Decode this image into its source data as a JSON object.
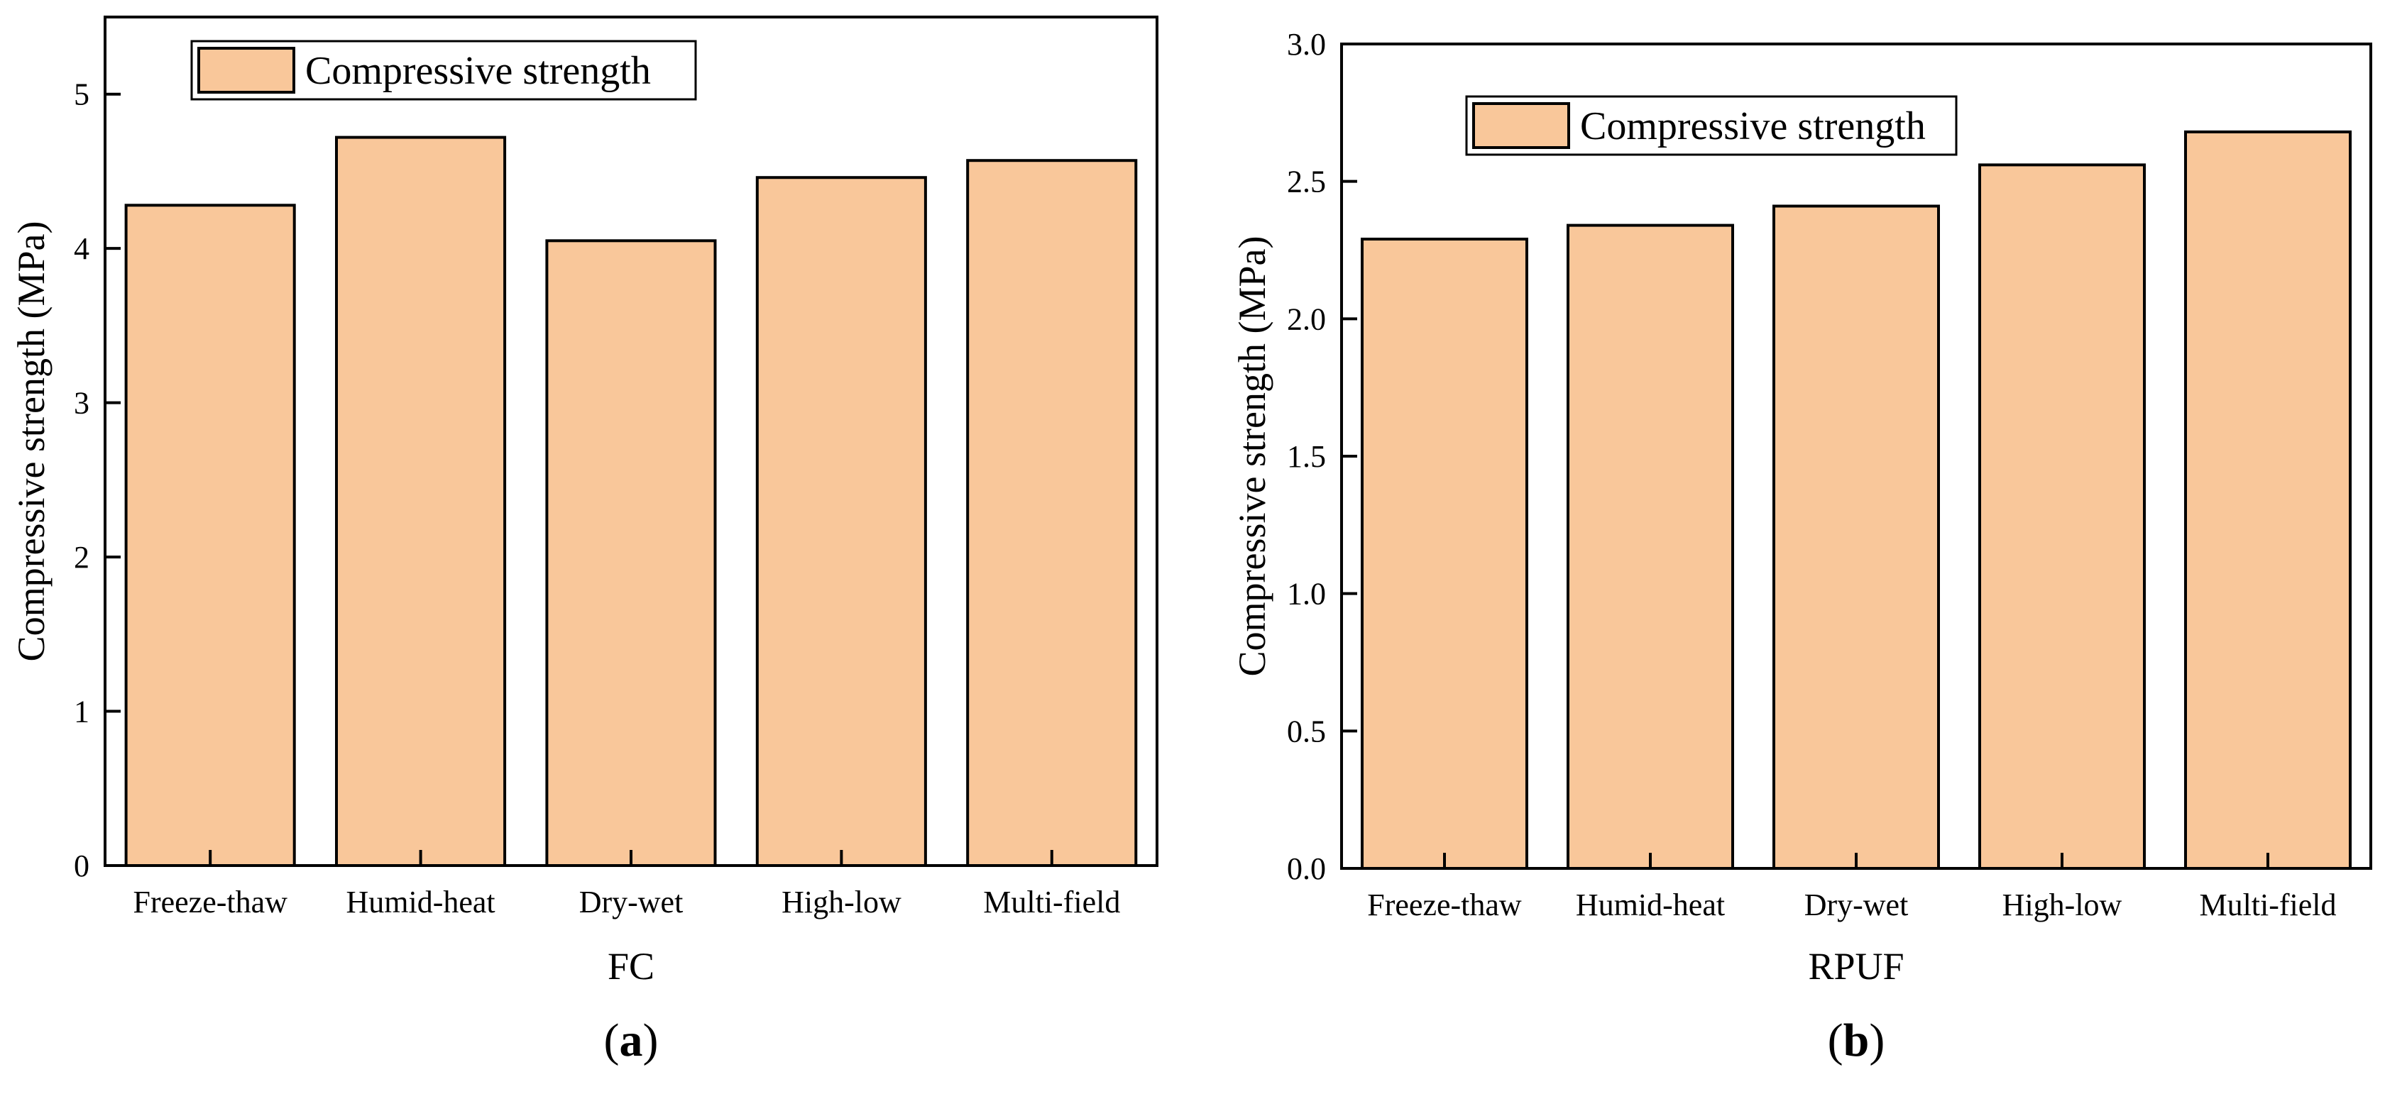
{
  "colors": {
    "bar_fill": "#F9C79A",
    "bar_stroke": "#000000",
    "axis": "#000000",
    "background": "#ffffff"
  },
  "chart_data": [
    {
      "type": "bar",
      "panel_label": {
        "open": "(",
        "letter": "a",
        "close": ")"
      },
      "title": "",
      "xlabel": "FC",
      "ylabel": "Compressive strength (MPa)",
      "categories": [
        "Freeze-thaw",
        "Humid-heat",
        "Dry-wet",
        "High-low",
        "Multi-field"
      ],
      "series": [
        {
          "name": "Compressive strength",
          "values": [
            4.28,
            4.72,
            4.05,
            4.46,
            4.57
          ]
        }
      ],
      "ylim": [
        0,
        5.5
      ],
      "yticks": [
        0,
        1,
        2,
        3,
        4,
        5
      ],
      "ytick_labels": [
        "0",
        "1",
        "2",
        "3",
        "4",
        "5"
      ],
      "grid": false,
      "legend": {
        "position": "top-left",
        "entries": [
          "Compressive strength"
        ]
      }
    },
    {
      "type": "bar",
      "panel_label": {
        "open": "(",
        "letter": "b",
        "close": ")"
      },
      "title": "",
      "xlabel": "RPUF",
      "ylabel": "Compressive strength (MPa)",
      "categories": [
        "Freeze-thaw",
        "Humid-heat",
        "Dry-wet",
        "High-low",
        "Multi-field"
      ],
      "series": [
        {
          "name": "Compressive strength",
          "values": [
            2.29,
            2.34,
            2.41,
            2.56,
            2.68
          ]
        }
      ],
      "ylim": [
        0,
        3.0
      ],
      "yticks": [
        0,
        0.5,
        1.0,
        1.5,
        2.0,
        2.5,
        3.0
      ],
      "ytick_labels": [
        "0.0",
        "0.5",
        "1.0",
        "1.5",
        "2.0",
        "2.5",
        "3.0"
      ],
      "grid": false,
      "legend": {
        "position": "top-left",
        "entries": [
          "Compressive strength"
        ]
      }
    }
  ]
}
